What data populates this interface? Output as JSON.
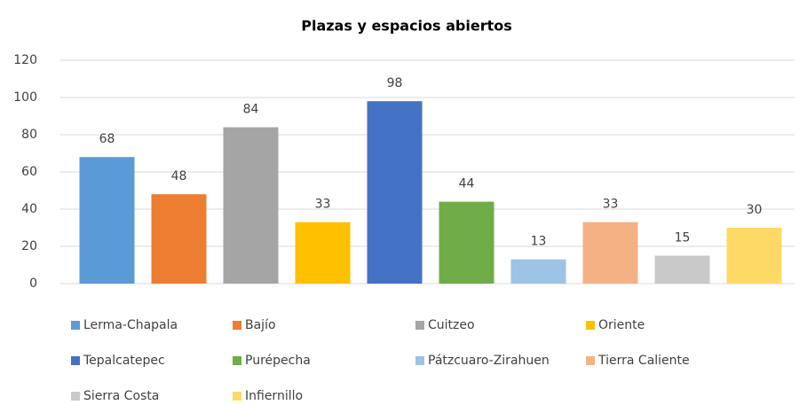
{
  "chart_data": {
    "type": "bar",
    "title": "Plazas y espacios abiertos",
    "categories": [
      "Lerma-Chapala",
      "Bajío",
      "Cuitzeo",
      "Oriente",
      "Tepalcatepec",
      "Purépecha",
      "Pátzcuaro-Zirahuen",
      "Tierra Caliente",
      "Sierra Costa",
      "Infiernillo"
    ],
    "values": [
      68,
      48,
      84,
      33,
      98,
      44,
      13,
      33,
      15,
      30
    ],
    "colors": [
      "#5b9bd5",
      "#ed7d31",
      "#a5a5a5",
      "#ffc000",
      "#4472c4",
      "#70ad47",
      "#9dc3e6",
      "#f4b183",
      "#c9c9c9",
      "#ffd966"
    ],
    "ylim": [
      0,
      120
    ],
    "yticks": [
      0,
      20,
      40,
      60,
      80,
      100,
      120
    ],
    "grid": true,
    "legend": "bottom"
  }
}
